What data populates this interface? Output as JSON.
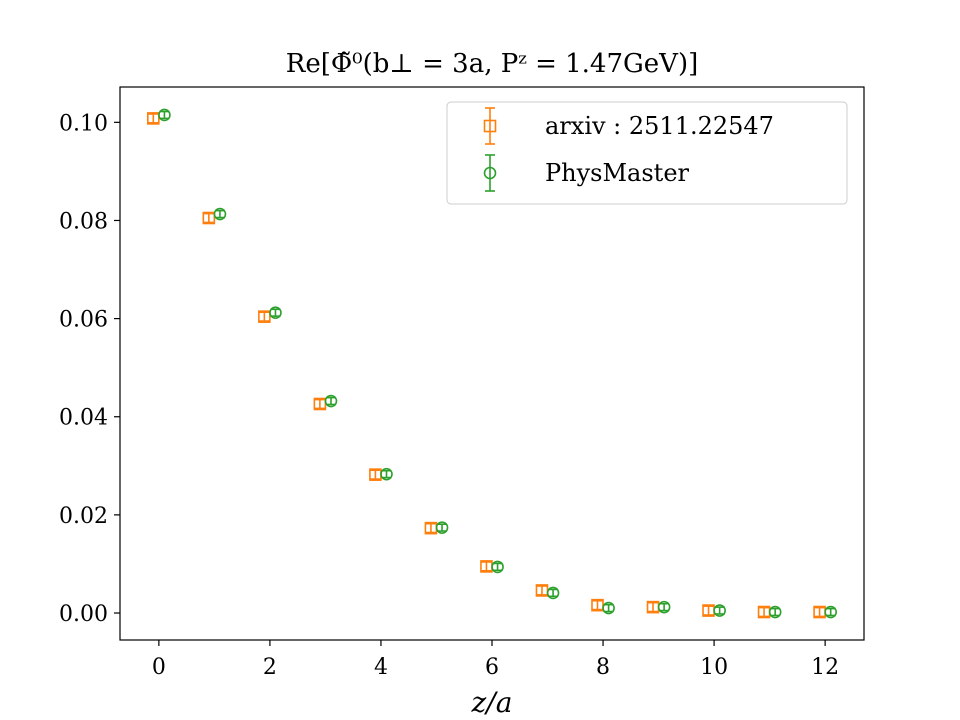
{
  "chart_data": {
    "type": "scatter",
    "title": "Re[Φ̃⁰(b⊥ = 3a, Pᶻ = 1.47GeV)]",
    "xlabel": "z/a",
    "ylabel": "",
    "xlim": [
      -0.7,
      12.7
    ],
    "ylim": [
      -0.0055,
      0.1072
    ],
    "xticks": [
      "0",
      "2",
      "4",
      "6",
      "8",
      "10",
      "12"
    ],
    "yticks": [
      "0.00",
      "0.02",
      "0.04",
      "0.06",
      "0.08",
      "0.10"
    ],
    "grid": false,
    "legend_position": "top-right",
    "series": [
      {
        "name": "arxiv : 2511.22547",
        "marker": "square",
        "color": "#ff7f0e",
        "x_offset": -0.1,
        "x": [
          0,
          1,
          2,
          3,
          4,
          5,
          6,
          7,
          8,
          9,
          10,
          11,
          12
        ],
        "y": [
          0.1008,
          0.0805,
          0.0604,
          0.0426,
          0.0282,
          0.0173,
          0.0095,
          0.0046,
          0.0016,
          0.0012,
          0.0005,
          0.0002,
          0.0002
        ],
        "yerr": [
          0.0009,
          0.0009,
          0.0009,
          0.0009,
          0.0009,
          0.0009,
          0.0009,
          0.0009,
          0.0009,
          0.0009,
          0.0009,
          0.0009,
          0.0009
        ]
      },
      {
        "name": "PhysMaster",
        "marker": "circle",
        "color": "#2ca02c",
        "x_offset": 0.1,
        "x": [
          0,
          1,
          2,
          3,
          4,
          5,
          6,
          7,
          8,
          9,
          10,
          11,
          12
        ],
        "y": [
          0.1015,
          0.0813,
          0.0612,
          0.0432,
          0.0283,
          0.0174,
          0.0094,
          0.0041,
          0.001,
          0.0012,
          0.0005,
          0.0002,
          0.0002
        ],
        "yerr": [
          0.0007,
          0.0007,
          0.0007,
          0.0007,
          0.0007,
          0.0007,
          0.0007,
          0.0007,
          0.0007,
          0.0007,
          0.0007,
          0.0007,
          0.0007
        ]
      }
    ]
  }
}
